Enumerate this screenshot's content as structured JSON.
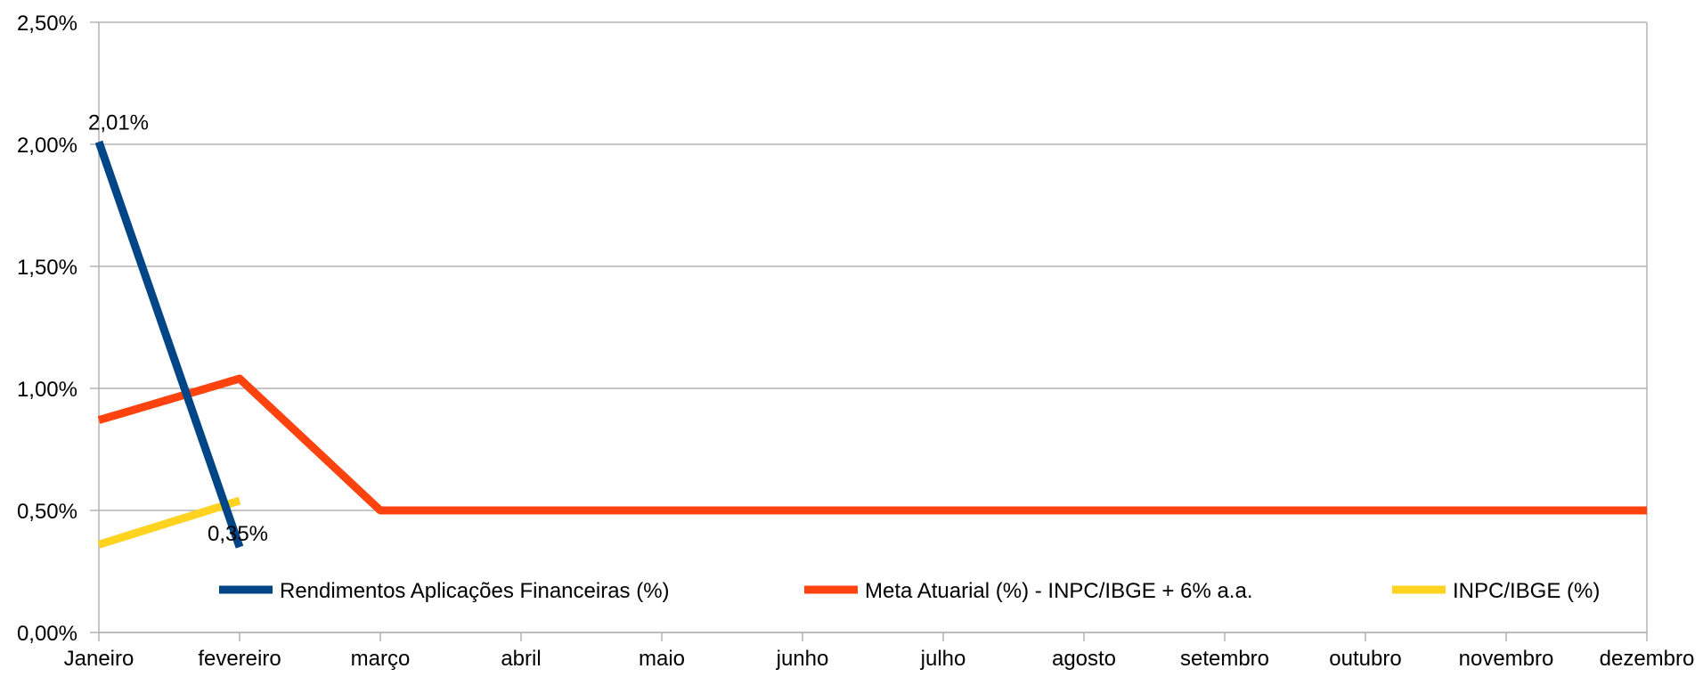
{
  "chart_data": {
    "type": "line",
    "categories": [
      "Janeiro",
      "fevereiro",
      "março",
      "abril",
      "maio",
      "junho",
      "julho",
      "agosto",
      "setembro",
      "outubro",
      "novembro",
      "dezembro"
    ],
    "ylim": [
      0,
      2.5
    ],
    "yticks": [
      "0,00%",
      "0,50%",
      "1,00%",
      "1,50%",
      "2,00%",
      "2,50%"
    ],
    "grid": true,
    "legend_position": "bottom",
    "series": [
      {
        "name": "Rendimentos Aplicações Financeiras (%)",
        "color": "#004586",
        "values": [
          2.01,
          0.35,
          null,
          null,
          null,
          null,
          null,
          null,
          null,
          null,
          null,
          null
        ],
        "data_labels": [
          "2,01%",
          "0,35%",
          null,
          null,
          null,
          null,
          null,
          null,
          null,
          null,
          null,
          null
        ]
      },
      {
        "name": "Meta Atuarial (%) - INPC/IBGE + 6% a.a.",
        "color": "#ff420e",
        "values": [
          0.87,
          1.04,
          0.5,
          0.5,
          0.5,
          0.5,
          0.5,
          0.5,
          0.5,
          0.5,
          0.5,
          0.5
        ]
      },
      {
        "name": "INPC/IBGE (%)",
        "color": "#ffd320",
        "values": [
          0.36,
          0.54,
          null,
          null,
          null,
          null,
          null,
          null,
          null,
          null,
          null,
          null
        ]
      }
    ]
  }
}
